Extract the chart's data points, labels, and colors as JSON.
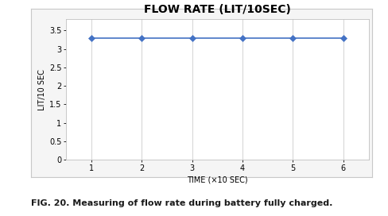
{
  "title": "FLOW RATE (LIT/10SEC)",
  "xlabel": "TIME (×10 SEC)",
  "ylabel": "LIT/10 SEC",
  "x": [
    1,
    2,
    3,
    4,
    5,
    6
  ],
  "y": [
    3.3,
    3.3,
    3.3,
    3.3,
    3.3,
    3.3
  ],
  "line_color": "#4472C4",
  "marker": "D",
  "marker_size": 4,
  "xlim": [
    0.5,
    6.5
  ],
  "ylim": [
    0,
    3.8
  ],
  "yticks": [
    0,
    0.5,
    1,
    1.5,
    2,
    2.5,
    3,
    3.5
  ],
  "xticks": [
    1,
    2,
    3,
    4,
    5,
    6
  ],
  "title_fontsize": 10,
  "axis_label_fontsize": 7,
  "tick_fontsize": 7,
  "caption": "FIG. 20. Measuring of flow rate during battery fully charged.",
  "caption_fontsize": 8,
  "bg_color": "#ffffff",
  "plot_bg_color": "#ffffff",
  "grid_color": "#d3d3d3",
  "spine_color": "#c0c0c0",
  "outer_box_color": "#c8c8c8"
}
